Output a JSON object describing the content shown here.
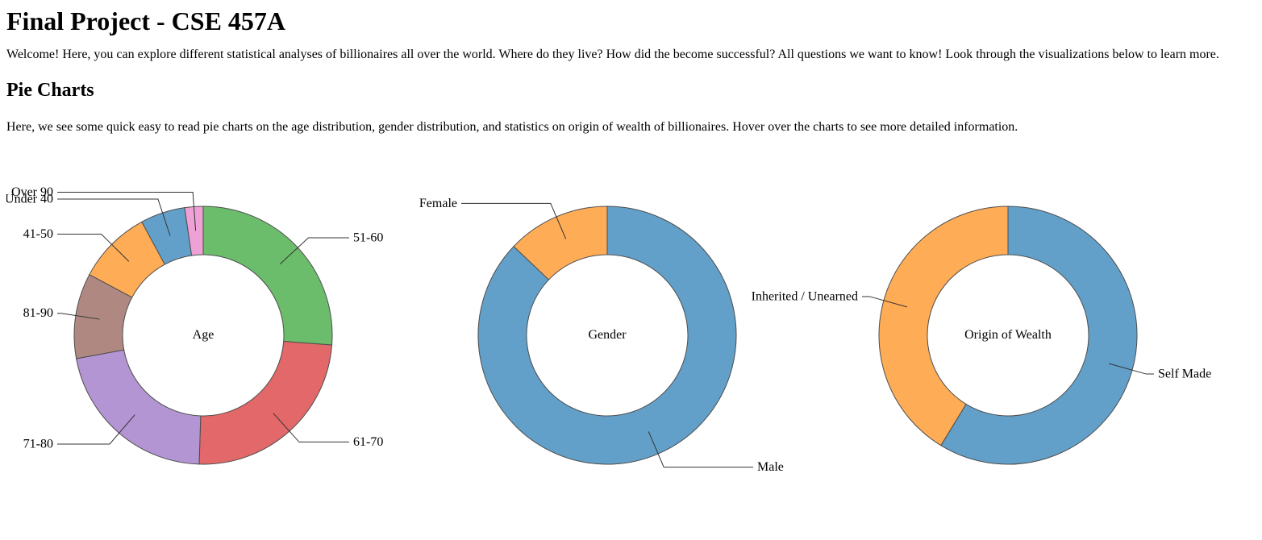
{
  "page": {
    "title": "Final Project - CSE 457A",
    "intro": "Welcome! Here, you can explore different statistical analyses of billionaires all over the world. Where do they live? How did the become successful? All questions we want to know! Look through the visualizations below to learn more.",
    "section_heading": "Pie Charts",
    "section_description": "Here, we see some quick easy to read pie charts on the age distribution, gender distribution, and statistics on origin of wealth of billionaires. Hover over the charts to see more detailed information."
  },
  "chart_data": [
    {
      "type": "pie",
      "name": "age",
      "donut": true,
      "center_label": "Age",
      "order": "clockwise-from-top-descending",
      "label_style": "leader-lines",
      "segments": [
        {
          "label": "51-60",
          "percent": 26.2,
          "color": "#6bbd6b"
        },
        {
          "label": "61-70",
          "percent": 24.3,
          "color": "#e26869"
        },
        {
          "label": "71-80",
          "percent": 21.6,
          "color": "#b495d3"
        },
        {
          "label": "81-90",
          "percent": 10.7,
          "color": "#af8981"
        },
        {
          "label": "41-50",
          "percent": 9.3,
          "color": "#ffac56"
        },
        {
          "label": "Under 40",
          "percent": 5.6,
          "color": "#62a0ca"
        },
        {
          "label": "Over 90",
          "percent": 2.3,
          "color": "#eea1d5"
        }
      ]
    },
    {
      "type": "pie",
      "name": "gender",
      "donut": true,
      "center_label": "Gender",
      "order": "clockwise-from-top-descending",
      "label_style": "leader-lines",
      "segments": [
        {
          "label": "Male",
          "percent": 87.1,
          "color": "#62a0ca"
        },
        {
          "label": "Female",
          "percent": 12.9,
          "color": "#ffac56"
        }
      ]
    },
    {
      "type": "pie",
      "name": "origin-of-wealth",
      "donut": true,
      "center_label": "Origin of Wealth",
      "order": "clockwise-from-top-descending",
      "label_style": "leader-lines",
      "segments": [
        {
          "label": "Self Made",
          "percent": 58.7,
          "color": "#62a0ca"
        },
        {
          "label": "Inherited / Unearned",
          "percent": 41.3,
          "color": "#ffac56"
        }
      ]
    }
  ]
}
